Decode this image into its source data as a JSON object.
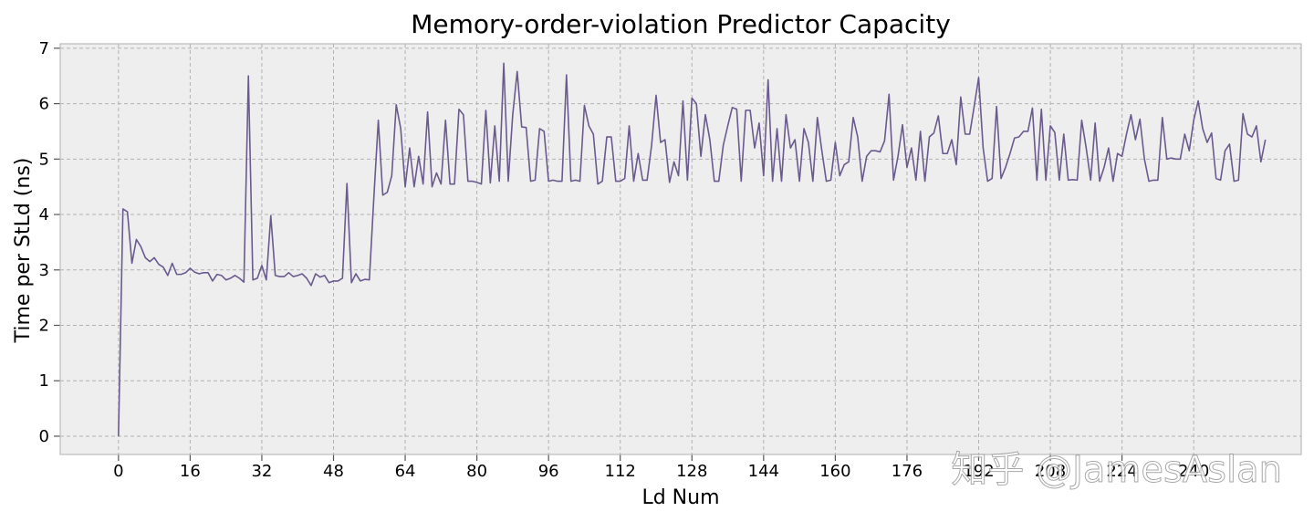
{
  "chart_data": {
    "type": "line",
    "title": "Memory-order-violation Predictor Capacity",
    "xlabel": "Ld Num",
    "ylabel": "Time per StLd (ns)",
    "xlim": [
      -13,
      264
    ],
    "ylim": [
      -0.33,
      7.08
    ],
    "xticks": [
      0,
      16,
      32,
      48,
      64,
      80,
      96,
      112,
      128,
      144,
      160,
      176,
      192,
      208,
      224,
      240
    ],
    "yticks": [
      0,
      1,
      2,
      3,
      4,
      5,
      6,
      7
    ],
    "grid": true,
    "color": "#6a5a8e",
    "watermark": "知乎 @JamesAslan",
    "series": [
      {
        "x_start": 0,
        "x_step": 1,
        "values": [
          0.0,
          4.1,
          4.05,
          3.12,
          3.55,
          3.42,
          3.22,
          3.15,
          3.22,
          3.1,
          3.05,
          2.9,
          3.12,
          2.92,
          2.92,
          2.95,
          3.03,
          2.96,
          2.93,
          2.95,
          2.95,
          2.8,
          2.92,
          2.9,
          2.82,
          2.85,
          2.9,
          2.85,
          2.78,
          6.5,
          2.82,
          2.85,
          3.08,
          2.82,
          3.98,
          2.9,
          2.88,
          2.88,
          2.95,
          2.88,
          2.9,
          2.93,
          2.85,
          2.72,
          2.93,
          2.87,
          2.9,
          2.77,
          2.8,
          2.8,
          2.85,
          4.56,
          2.77,
          2.93,
          2.8,
          2.83,
          2.82,
          4.3,
          5.7,
          4.35,
          4.4,
          4.7,
          5.98,
          5.55,
          4.5,
          5.2,
          4.5,
          5.05,
          4.55,
          5.85,
          4.5,
          4.75,
          4.55,
          5.7,
          4.55,
          4.55,
          5.9,
          5.8,
          4.6,
          4.6,
          4.58,
          4.55,
          5.88,
          4.57,
          5.6,
          4.6,
          6.73,
          4.6,
          5.8,
          6.58,
          5.58,
          5.57,
          4.6,
          4.62,
          5.55,
          5.5,
          4.6,
          4.62,
          4.6,
          4.6,
          6.52,
          4.6,
          4.62,
          4.6,
          5.97,
          5.6,
          5.45,
          4.55,
          4.6,
          5.4,
          5.4,
          4.6,
          4.6,
          4.65,
          5.6,
          4.6,
          5.1,
          4.62,
          4.62,
          5.25,
          6.15,
          5.3,
          5.35,
          4.58,
          4.95,
          4.7,
          6.05,
          4.62,
          6.1,
          6.0,
          5.05,
          5.8,
          5.35,
          4.6,
          4.6,
          5.25,
          5.6,
          5.93,
          5.9,
          4.6,
          5.88,
          5.88,
          5.2,
          5.65,
          4.7,
          6.43,
          4.6,
          5.55,
          4.6,
          5.8,
          5.2,
          5.35,
          4.6,
          5.55,
          5.3,
          4.6,
          5.75,
          5.15,
          4.6,
          4.62,
          5.3,
          4.7,
          4.9,
          4.95,
          5.75,
          5.4,
          4.6,
          5.05,
          5.15,
          5.15,
          5.13,
          5.33,
          6.17,
          4.62,
          5.05,
          5.62,
          4.85,
          5.2,
          4.62,
          5.5,
          4.6,
          5.4,
          5.47,
          5.78,
          5.1,
          5.1,
          5.35,
          4.9,
          6.12,
          5.45,
          5.45,
          5.95,
          6.47,
          5.2,
          4.6,
          4.65,
          5.95,
          4.65,
          4.85,
          5.1,
          5.38,
          5.4,
          5.5,
          5.5,
          5.92,
          4.62,
          5.9,
          4.62,
          5.6,
          5.48,
          4.62,
          5.45,
          4.62,
          4.63,
          4.62,
          5.7,
          5.2,
          4.62,
          5.65,
          4.6,
          4.85,
          5.2,
          4.6,
          5.1,
          5.05,
          5.45,
          5.8,
          5.35,
          5.72,
          5.0,
          4.6,
          4.62,
          4.62,
          5.75,
          5.0,
          5.02,
          5.0,
          5.0,
          5.45,
          5.15,
          5.7,
          6.05,
          5.55,
          5.3,
          5.47,
          4.65,
          4.62,
          5.15,
          5.27,
          4.6,
          4.62,
          5.82,
          5.45,
          5.4,
          5.6,
          4.95,
          5.35
        ]
      }
    ]
  }
}
